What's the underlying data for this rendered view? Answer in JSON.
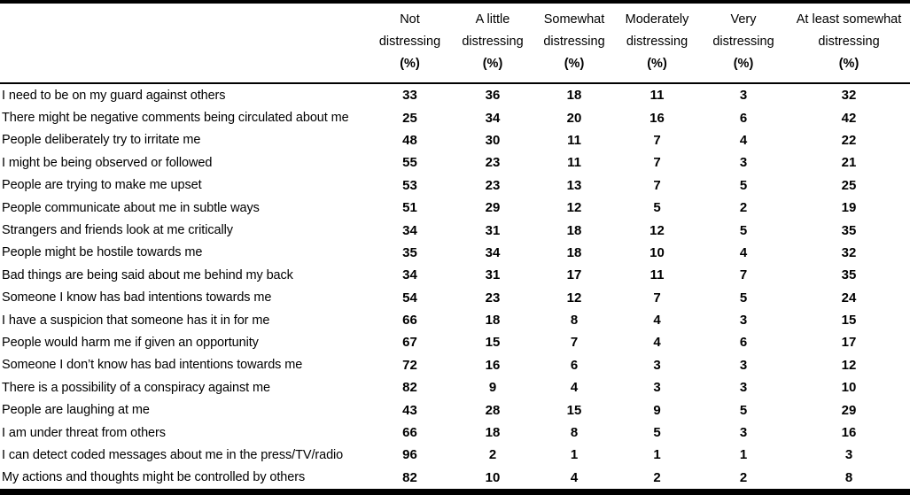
{
  "colors": {
    "text": "#000000",
    "background": "#ffffff",
    "rule": "#000000"
  },
  "table": {
    "row_label_header": "",
    "columns": [
      {
        "lines": [
          "Not",
          "distressing",
          "(%)"
        ]
      },
      {
        "lines": [
          "A little",
          "distressing",
          "(%)"
        ]
      },
      {
        "lines": [
          "Somewhat",
          "distressing",
          "(%)"
        ]
      },
      {
        "lines": [
          "Moderately",
          "distressing",
          "(%)"
        ]
      },
      {
        "lines": [
          "Very",
          "distressing",
          "(%)"
        ]
      },
      {
        "lines": [
          "At least somewhat",
          "distressing",
          "(%)"
        ]
      }
    ],
    "rows": [
      {
        "label": "I need to be on my guard against others",
        "values": [
          33,
          36,
          18,
          11,
          3,
          32
        ]
      },
      {
        "label": "There might be negative comments being circulated about me",
        "values": [
          25,
          34,
          20,
          16,
          6,
          42
        ]
      },
      {
        "label": "People deliberately try to irritate me",
        "values": [
          48,
          30,
          11,
          7,
          4,
          22
        ]
      },
      {
        "label": "I might be being observed or followed",
        "values": [
          55,
          23,
          11,
          7,
          3,
          21
        ]
      },
      {
        "label": "People are trying to make me upset",
        "values": [
          53,
          23,
          13,
          7,
          5,
          25
        ]
      },
      {
        "label": "People communicate about me in subtle ways",
        "values": [
          51,
          29,
          12,
          5,
          2,
          19
        ]
      },
      {
        "label": "Strangers and friends look at me critically",
        "values": [
          34,
          31,
          18,
          12,
          5,
          35
        ]
      },
      {
        "label": "People might be hostile towards me",
        "values": [
          35,
          34,
          18,
          10,
          4,
          32
        ]
      },
      {
        "label": "Bad things are being said about me behind my back",
        "values": [
          34,
          31,
          17,
          11,
          7,
          35
        ]
      },
      {
        "label": "Someone I know has bad intentions towards me",
        "values": [
          54,
          23,
          12,
          7,
          5,
          24
        ]
      },
      {
        "label": "I have a suspicion that someone has it in for me",
        "values": [
          66,
          18,
          8,
          4,
          3,
          15
        ]
      },
      {
        "label": "People would harm me if given an opportunity",
        "values": [
          67,
          15,
          7,
          4,
          6,
          17
        ]
      },
      {
        "label": "Someone I don’t know has bad intentions towards me",
        "values": [
          72,
          16,
          6,
          3,
          3,
          12
        ]
      },
      {
        "label": "There is a possibility of a conspiracy against me",
        "values": [
          82,
          9,
          4,
          3,
          3,
          10
        ]
      },
      {
        "label": "People are laughing at me",
        "values": [
          43,
          28,
          15,
          9,
          5,
          29
        ]
      },
      {
        "label": "I am under threat from others",
        "values": [
          66,
          18,
          8,
          5,
          3,
          16
        ]
      },
      {
        "label": "I can detect coded messages about me in the press/TV/radio",
        "values": [
          96,
          2,
          1,
          1,
          1,
          3
        ]
      },
      {
        "label": "My actions and thoughts might be controlled by others",
        "values": [
          82,
          10,
          4,
          2,
          2,
          8
        ]
      }
    ]
  }
}
